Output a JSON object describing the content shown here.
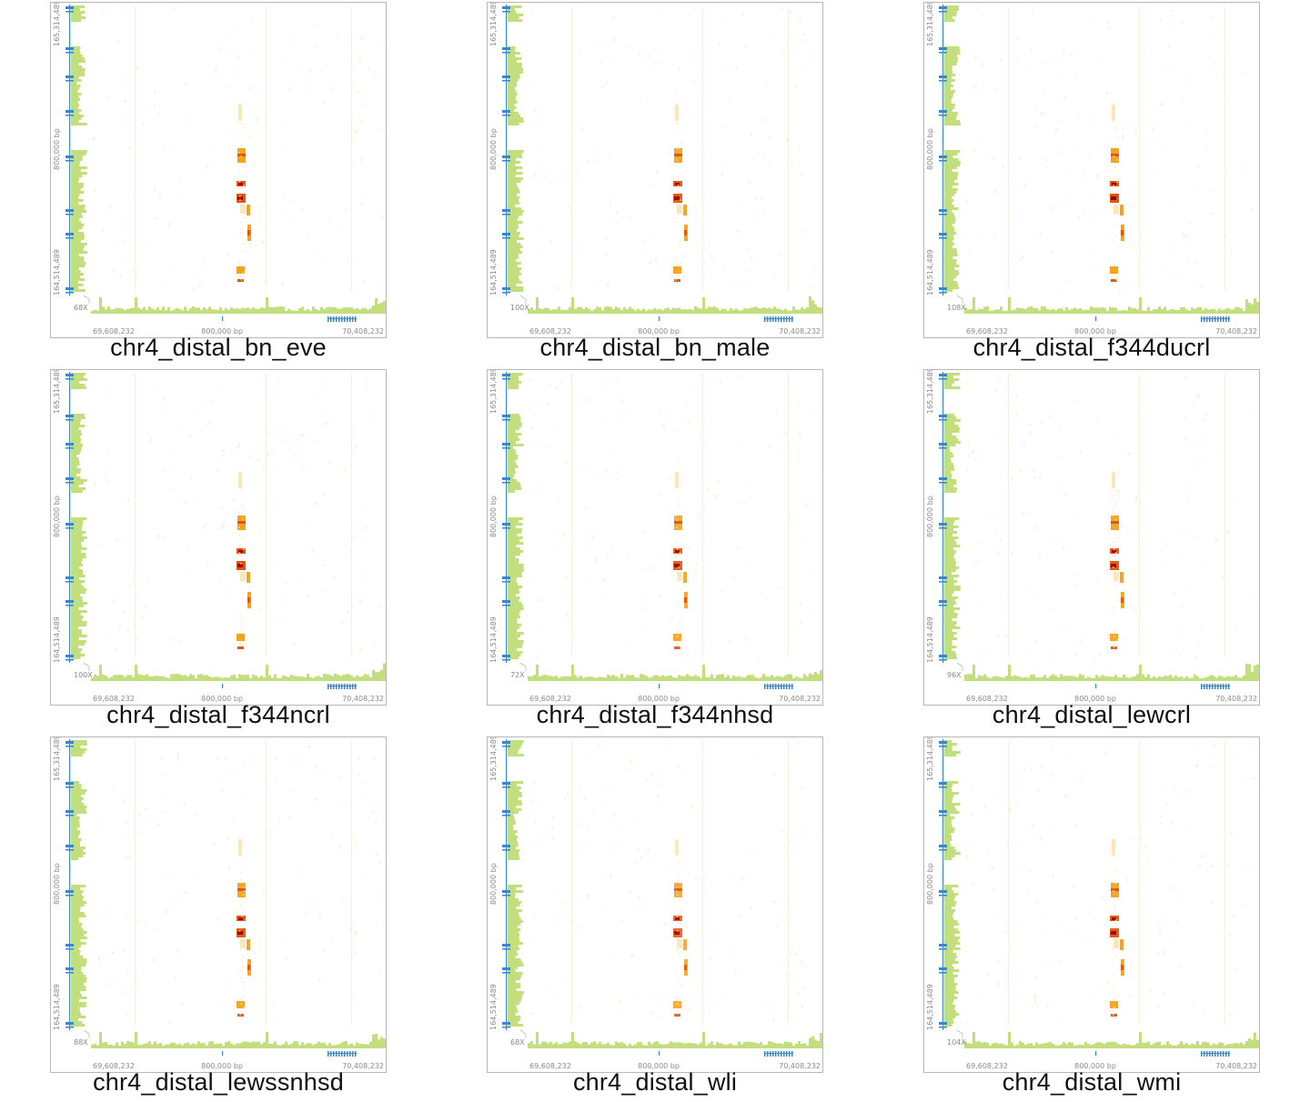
{
  "colors": {
    "coverage": "#c3de7c",
    "gene": "#3a87c9",
    "heat_light": "#fde6b5",
    "heat_mid": "#f5a21c",
    "heat_high": "#e0560e",
    "heat_max": "#a10000",
    "border": "#b7b7b7"
  },
  "axis": {
    "x_start": "69,608,232",
    "x_mid": "800,000 bp",
    "x_end": "70,408,232",
    "y_top": "165,314,489",
    "y_mid": "800,000 bp",
    "y_bottom": "164,514,489"
  },
  "panels": [
    {
      "title": "chr4_distal_bn_eve",
      "coverage": "68X",
      "intensity": 1.0
    },
    {
      "title": "chr4_distal_bn_male",
      "coverage": "100X",
      "intensity": 0.9
    },
    {
      "title": "chr4_distal_f344ducrl",
      "coverage": "108X",
      "intensity": 1.0
    },
    {
      "title": "chr4_distal_f344ncrl",
      "coverage": "100X",
      "intensity": 1.0
    },
    {
      "title": "chr4_distal_f344nhsd",
      "coverage": "72X",
      "intensity": 0.8
    },
    {
      "title": "chr4_distal_lewcrl",
      "coverage": "96X",
      "intensity": 0.9
    },
    {
      "title": "chr4_distal_lewssnhsd",
      "coverage": "88X",
      "intensity": 0.9
    },
    {
      "title": "chr4_distal_wli",
      "coverage": "68X",
      "intensity": 0.7
    },
    {
      "title": "chr4_distal_wmi",
      "coverage": "104X",
      "intensity": 0.9
    }
  ]
}
